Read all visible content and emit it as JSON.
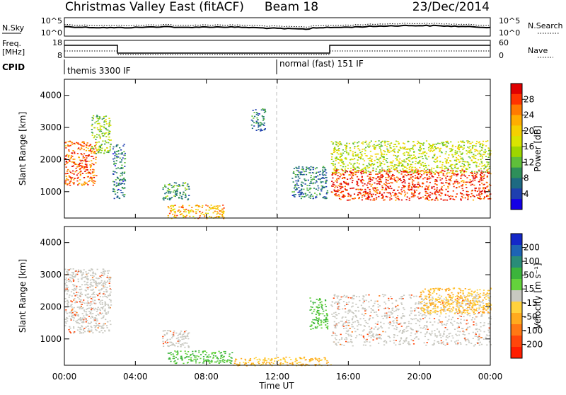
{
  "header": {
    "title": "Christmas Valley East (fitACF)",
    "beam": "Beam 18",
    "date": "23/Dec/2014"
  },
  "noise_panel": {
    "left_label": "N.Sky",
    "right_label": "N.Search",
    "left_ticks": [
      "10^5",
      "10^0"
    ],
    "right_ticks": [
      "10^5",
      "10^0"
    ]
  },
  "freq_panel": {
    "left_label_1": "Freq.",
    "left_label_2": "[MHz]",
    "right_label": "Nave",
    "left_ticks": [
      "18",
      "8"
    ],
    "right_ticks": [
      "60",
      "0"
    ]
  },
  "cpid": {
    "label": "CPID",
    "modes": [
      "themis 3300 IF",
      "normal (fast) 151 IF"
    ]
  },
  "time_axis": {
    "tick_labels": [
      "00:00",
      "04:00",
      "08:00",
      "12:00",
      "16:00",
      "20:00",
      "00:00"
    ],
    "xlabel": "Time UT"
  },
  "power_colorbar": {
    "label": "Power [dB]",
    "tick_labels": [
      "28",
      "24",
      "20",
      "16",
      "12",
      "8",
      "4"
    ],
    "colors": [
      "#e00000",
      "#ff3300",
      "#ff7a00",
      "#ffad00",
      "#f5d000",
      "#d9e400",
      "#9ed600",
      "#5fbf3a",
      "#2e8f5a",
      "#1e6a82",
      "#1e3fb0",
      "#1400e6"
    ]
  },
  "velocity_colorbar": {
    "label": "Velocity [m s⁻¹]",
    "tick_labels": [
      "200",
      "100",
      "50",
      "15",
      "-15",
      "-50",
      "-100",
      "-200"
    ],
    "colors": [
      "#1428c8",
      "#1e64b4",
      "#2a8c78",
      "#3cb43c",
      "#64d23c",
      "#c8c8c0",
      "#ffd23c",
      "#ffaa1e",
      "#ff7814",
      "#ff460a",
      "#ff1e00"
    ]
  },
  "chart_data": [
    {
      "type": "heatmap",
      "title": "",
      "quantity": "Power",
      "xlabel": "Time UT",
      "ylabel": "Slant Range [km]",
      "xlim_hours": [
        0,
        24
      ],
      "ylim_km": [
        180,
        4500
      ],
      "ytick_labels": [
        "4000",
        "3000",
        "2000",
        "1000"
      ],
      "features": [
        {
          "t": [
            0.0,
            1.8
          ],
          "range_km": [
            1200,
            2600
          ],
          "power_db": 24
        },
        {
          "t": [
            1.5,
            2.6
          ],
          "range_km": [
            2200,
            3400
          ],
          "power_db": 12
        },
        {
          "t": [
            2.7,
            3.4
          ],
          "range_km": [
            800,
            2500
          ],
          "power_db": 6
        },
        {
          "t": [
            5.5,
            7.0
          ],
          "range_km": [
            750,
            1300
          ],
          "power_db": 8
        },
        {
          "t": [
            5.8,
            9.0
          ],
          "range_km": [
            180,
            600
          ],
          "power_db": 20
        },
        {
          "t": [
            10.5,
            11.3
          ],
          "range_km": [
            2900,
            3600
          ],
          "power_db": 6
        },
        {
          "t": [
            12.8,
            14.8
          ],
          "range_km": [
            800,
            1800
          ],
          "power_db": 6
        },
        {
          "t": [
            15.0,
            24.0
          ],
          "range_km": [
            750,
            1700
          ],
          "power_db": 26
        },
        {
          "t": [
            15.0,
            24.0
          ],
          "range_km": [
            1600,
            2600
          ],
          "power_db": 14
        }
      ]
    },
    {
      "type": "heatmap",
      "title": "",
      "quantity": "Velocity",
      "xlabel": "Time UT",
      "ylabel": "Slant Range [km]",
      "xlim_hours": [
        0,
        24
      ],
      "ylim_km": [
        180,
        4500
      ],
      "ytick_labels": [
        "4000",
        "3000",
        "2000",
        "1000"
      ],
      "features": [
        {
          "t": [
            0.0,
            2.6
          ],
          "range_km": [
            1200,
            3200
          ],
          "velocity": 0
        },
        {
          "t": [
            5.5,
            7.0
          ],
          "range_km": [
            750,
            1300
          ],
          "velocity": 0
        },
        {
          "t": [
            5.8,
            9.5
          ],
          "range_km": [
            250,
            650
          ],
          "velocity": 40
        },
        {
          "t": [
            9.5,
            15.0
          ],
          "range_km": [
            180,
            450
          ],
          "velocity": -30
        },
        {
          "t": [
            13.8,
            14.8
          ],
          "range_km": [
            1300,
            2300
          ],
          "velocity": 50
        },
        {
          "t": [
            15.0,
            24.0
          ],
          "range_km": [
            800,
            2400
          ],
          "velocity": 0
        },
        {
          "t": [
            20.0,
            24.0
          ],
          "range_km": [
            1800,
            2600
          ],
          "velocity": -40
        }
      ]
    }
  ]
}
